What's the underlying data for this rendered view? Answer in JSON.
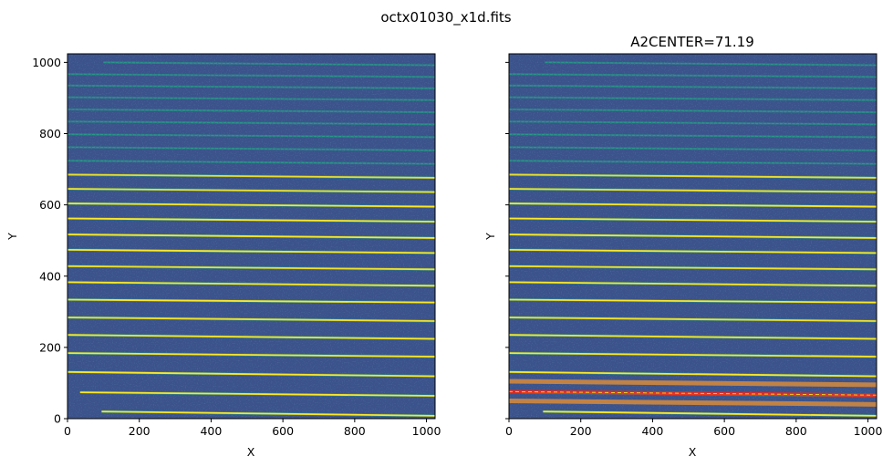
{
  "figure": {
    "suptitle": "octx01030_x1d.fits"
  },
  "colors": {
    "background": "#3b528b",
    "trace_bright": "#fde725",
    "trace_mid": "#22a884",
    "noise_dark": "#31688e",
    "extraction_center": "#e8281c",
    "background_regions": "#d98b3a"
  },
  "chart_data": [
    {
      "type": "image",
      "title": "",
      "xlabel": "X",
      "ylabel": "Y",
      "xlim": [
        0,
        1024
      ],
      "ylim": [
        0,
        1024
      ],
      "xticks": [
        0,
        200,
        400,
        600,
        800,
        1000
      ],
      "yticks": [
        0,
        200,
        400,
        600,
        800,
        1000
      ],
      "xtick_labels": [
        "0",
        "200",
        "400",
        "600",
        "800",
        "1000"
      ],
      "ytick_labels": [
        "0",
        "200",
        "400",
        "600",
        "800",
        "1000"
      ],
      "traces": [
        {
          "x_start": 95,
          "y_left": 20,
          "y_right": 8,
          "intensity": 0.95
        },
        {
          "x_start": 35,
          "y_left": 74,
          "y_right": 64,
          "intensity": 1.0
        },
        {
          "x_start": 0,
          "y_left": 131,
          "y_right": 119,
          "intensity": 1.0
        },
        {
          "x_start": 0,
          "y_left": 184,
          "y_right": 174,
          "intensity": 1.0
        },
        {
          "x_start": 0,
          "y_left": 235,
          "y_right": 224,
          "intensity": 1.0
        },
        {
          "x_start": 0,
          "y_left": 284,
          "y_right": 274,
          "intensity": 0.85
        },
        {
          "x_start": 0,
          "y_left": 334,
          "y_right": 326,
          "intensity": 1.0
        },
        {
          "x_start": 0,
          "y_left": 383,
          "y_right": 373,
          "intensity": 1.0
        },
        {
          "x_start": 0,
          "y_left": 428,
          "y_right": 419,
          "intensity": 0.85
        },
        {
          "x_start": 0,
          "y_left": 474,
          "y_right": 465,
          "intensity": 1.0
        },
        {
          "x_start": 0,
          "y_left": 517,
          "y_right": 507,
          "intensity": 1.0
        },
        {
          "x_start": 0,
          "y_left": 562,
          "y_right": 553,
          "intensity": 1.0
        },
        {
          "x_start": 0,
          "y_left": 604,
          "y_right": 595,
          "intensity": 1.0
        },
        {
          "x_start": 0,
          "y_left": 645,
          "y_right": 636,
          "intensity": 0.85
        },
        {
          "x_start": 0,
          "y_left": 685,
          "y_right": 676,
          "intensity": 0.8
        },
        {
          "x_start": 0,
          "y_left": 724,
          "y_right": 715,
          "intensity": 0.6
        },
        {
          "x_start": 0,
          "y_left": 762,
          "y_right": 753,
          "intensity": 0.55
        },
        {
          "x_start": 0,
          "y_left": 798,
          "y_right": 790,
          "intensity": 0.5
        },
        {
          "x_start": 0,
          "y_left": 834,
          "y_right": 826,
          "intensity": 0.5
        },
        {
          "x_start": 0,
          "y_left": 868,
          "y_right": 860,
          "intensity": 0.45
        },
        {
          "x_start": 0,
          "y_left": 902,
          "y_right": 894,
          "intensity": 0.45
        },
        {
          "x_start": 0,
          "y_left": 935,
          "y_right": 927,
          "intensity": 0.45
        },
        {
          "x_start": 0,
          "y_left": 967,
          "y_right": 959,
          "intensity": 0.4
        },
        {
          "x_start": 100,
          "y_left": 1000,
          "y_right": 992,
          "intensity": 0.4
        }
      ]
    },
    {
      "type": "image",
      "title": "A2CENTER=71.19",
      "xlabel": "X",
      "ylabel": "Y",
      "xlim": [
        0,
        1024
      ],
      "ylim": [
        0,
        1024
      ],
      "xticks": [
        0,
        200,
        400,
        600,
        800,
        1000
      ],
      "yticks": [
        0,
        200,
        400,
        600,
        800,
        1000
      ],
      "xtick_labels": [
        "0",
        "200",
        "400",
        "600",
        "800",
        "1000"
      ],
      "ytick_labels": [],
      "extraction": {
        "center_y_left": 76,
        "center_y_right": 66,
        "background_upper_y_left": 105,
        "background_upper_y_right": 95,
        "background_lower_y_left": 50,
        "background_lower_y_right": 40
      }
    }
  ]
}
